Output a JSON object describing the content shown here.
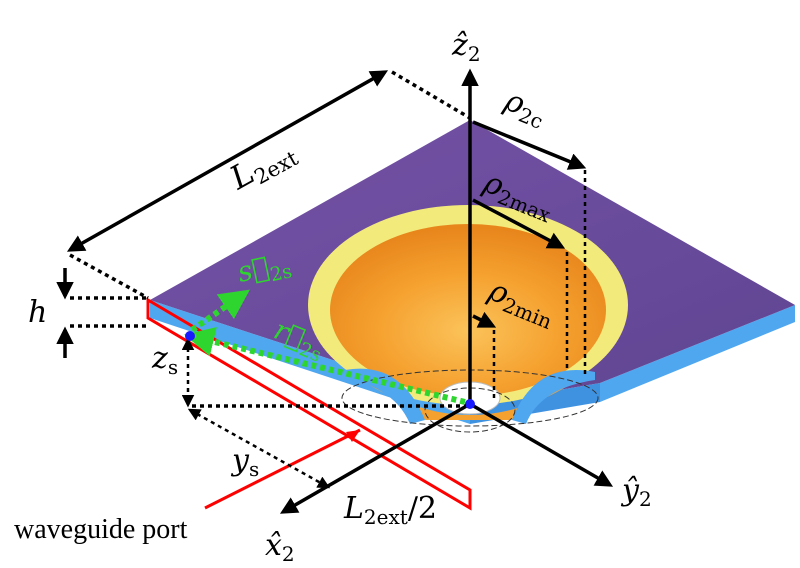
{
  "labels": {
    "z2": {
      "main": "ẑ",
      "sub": "2"
    },
    "y2": {
      "main": "ŷ",
      "sub": "2"
    },
    "x2": {
      "main": "x̂",
      "sub": "2"
    },
    "rho2c": {
      "main": "ρ",
      "sub": "2c"
    },
    "rho2max": {
      "main": "ρ",
      "sub": "2max"
    },
    "rho2min": {
      "main": "ρ",
      "sub": "2min"
    },
    "L2ext": {
      "main": "L",
      "sub": "2ext"
    },
    "L2ext_half": {
      "main": "L",
      "sub": "2ext",
      "suffix": "/2"
    },
    "h": "h",
    "zs": {
      "main": "z",
      "sub": "s"
    },
    "ys": {
      "main": "y",
      "sub": "s"
    },
    "r2s": {
      "main": "r⃗",
      "sub": "2s"
    },
    "s2s": {
      "main": "s⃗",
      "sub": "2s"
    },
    "waveguide_port": "waveguide port"
  },
  "colors": {
    "plate_top": "#6c4b9c",
    "plate_side": "#4fa7f0",
    "horn_inner": "#f39a2b",
    "horn_rim": "#f2ea7a",
    "port": "#ff0000",
    "vector": "#2fd52f",
    "origin": "#1a1aff"
  }
}
